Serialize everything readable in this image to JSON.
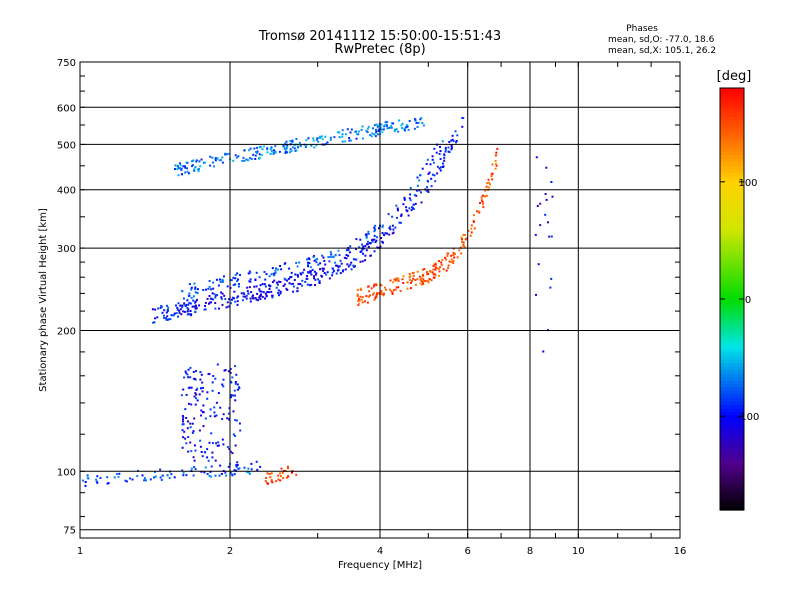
{
  "chart_data": {
    "type": "scatter",
    "title": "Tromsø 20141112 15:50:00-15:51:43",
    "subtitle": "RwPretec (8p)",
    "xlabel": "Frequency [MHz]",
    "ylabel": "Stationary phase Virtual Height [km]",
    "xscale": "log",
    "yscale": "log",
    "xlim": [
      1,
      16
    ],
    "ylim": [
      72,
      750
    ],
    "x_ticks": [
      1,
      2,
      4,
      6,
      8,
      10,
      16
    ],
    "y_ticks": [
      75,
      100,
      200,
      300,
      400,
      500,
      600,
      750
    ],
    "grid": true,
    "legend_block": {
      "title": "Phases",
      "line1": "mean, sd,O: -77.0, 18.6",
      "line2": "mean, sd,X: 105.1, 26.2"
    },
    "colorbar": {
      "label": "[deg]",
      "range": [
        -180,
        180
      ],
      "ticks": [
        100,
        0,
        -100
      ]
    },
    "series": [
      {
        "name": "F2 O-trace",
        "shape": "arc",
        "x_start": 1.4,
        "x_end": 5.9,
        "h_start": 215,
        "h_bend": 290,
        "h_end": 560,
        "phase": -100,
        "count": 380
      },
      {
        "name": "F2 upper diffuse trace",
        "shape": "arc",
        "x_start": 1.6,
        "x_end": 5.4,
        "h_start": 240,
        "h_bend": 310,
        "h_end": 520,
        "phase": -85,
        "count": 200
      },
      {
        "name": "F2 X-trace",
        "shape": "arc",
        "x_start": 3.6,
        "x_end": 6.9,
        "h_start": 235,
        "h_bend": 285,
        "h_end": 480,
        "phase": 150,
        "count": 220
      },
      {
        "name": "Multiple echo 2F",
        "shape": "band",
        "x_start": 1.55,
        "x_end": 4.9,
        "h_start": 440,
        "h_end": 560,
        "phase": -70,
        "count": 260
      },
      {
        "name": "Spread echo",
        "shape": "cloud",
        "x_start": 1.6,
        "x_end": 2.1,
        "h_start": 105,
        "h_end": 165,
        "phase": -100,
        "count": 160
      },
      {
        "name": "E layer",
        "shape": "band",
        "x_start": 1.0,
        "x_end": 2.3,
        "h_start": 95,
        "h_end": 102,
        "phase": -80,
        "count": 90
      },
      {
        "name": "Es X-trace",
        "shape": "band",
        "x_start": 2.35,
        "x_end": 2.75,
        "h_start": 96,
        "h_end": 101,
        "phase": 160,
        "count": 30
      },
      {
        "name": "Interference 8-9 MHz",
        "shape": "column",
        "x_start": 8.2,
        "x_end": 8.9,
        "h_start": 150,
        "h_end": 480,
        "phase": -110,
        "count": 20
      }
    ]
  }
}
